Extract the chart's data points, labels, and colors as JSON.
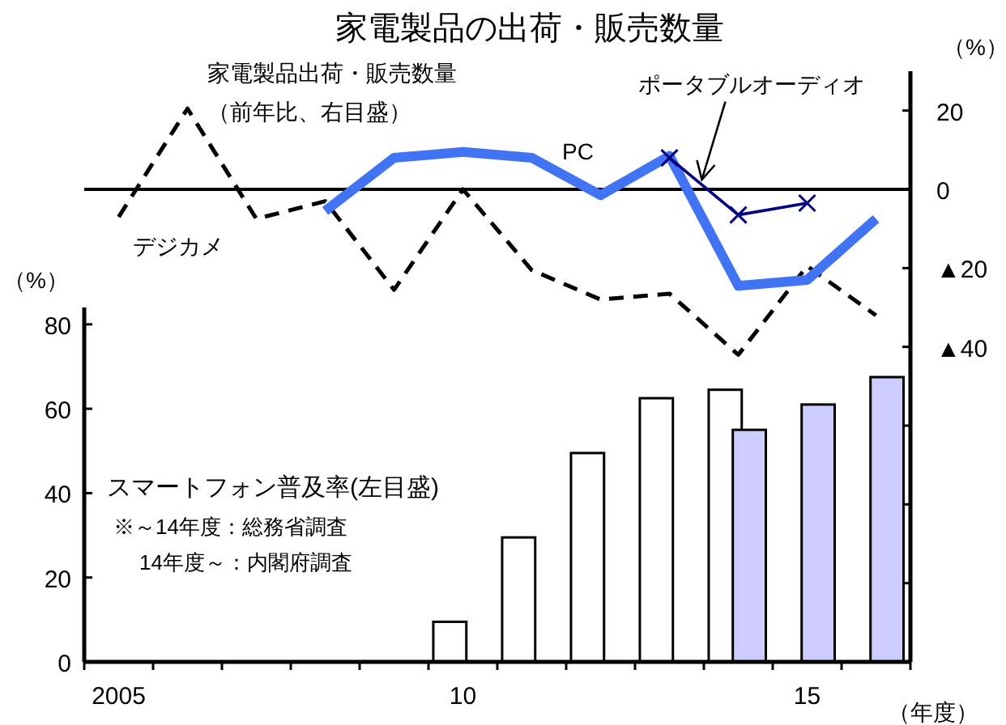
{
  "chart_data": [
    {
      "type": "line",
      "title": "家電製品の出荷・販売数量",
      "categories": [
        null,
        null,
        null,
        null,
        null,
        null,
        null,
        null,
        null,
        null,
        null,
        null
      ],
      "ylabel": "（%）",
      "ylim": [
        -120,
        30
      ],
      "yticks": [
        20,
        0,
        {
          "value": -20,
          "label": "▲20"
        },
        {
          "value": -40,
          "label": "▲40"
        },
        {
          "value": -60,
          "label": null
        },
        {
          "value": -80,
          "label": null
        },
        {
          "value": -100,
          "label": null
        }
      ],
      "tick_labels": "y",
      "series": [
        {
          "name": "デジカメ",
          "color": "#000000",
          "line_style": "dashed",
          "marker": "none",
          "values": [
            -7,
            20.5,
            -7.5,
            -3,
            -25.5,
            0,
            -20.5,
            -28,
            -26.5,
            -42,
            -19.5,
            -32
          ]
        },
        {
          "name": "PC",
          "color": "#4173f5",
          "line_style": "solid",
          "marker": "none",
          "values": [
            null,
            null,
            null,
            -5.5,
            8,
            9.5,
            8,
            -1.5,
            8.5,
            -24.5,
            -23,
            -7.5
          ]
        },
        {
          "name": "ポータブルオーディオ",
          "color": "#000080",
          "line_style": "solid",
          "marker": "cross",
          "values": [
            null,
            null,
            null,
            null,
            null,
            null,
            null,
            null,
            8,
            -6.5,
            -3.5,
            null
          ]
        }
      ],
      "ref_lines": [
        {
          "axis": "y",
          "value": 0,
          "color": "#000000"
        }
      ],
      "annotations": [
        "家電製品出荷・販売数量",
        "（前年比、右目盛）"
      ],
      "grid": false,
      "legend": false
    },
    {
      "type": "bar",
      "categories": [
        "2005",
        null,
        null,
        null,
        null,
        "10",
        null,
        null,
        null,
        null,
        "15",
        null
      ],
      "xlabel": "（年度）",
      "ylabel": "（%）",
      "ylim": [
        0,
        84
      ],
      "yticks": [
        0,
        20,
        40,
        60,
        80
      ],
      "series": [
        {
          "color": "#ffffff",
          "values": [
            null,
            null,
            null,
            null,
            null,
            9.5,
            29.5,
            49.5,
            62.5,
            64.5,
            null,
            null
          ]
        },
        {
          "color": "#ccccff",
          "values": [
            null,
            null,
            null,
            null,
            null,
            null,
            null,
            null,
            null,
            55,
            61,
            67.5
          ]
        }
      ],
      "annotations": [
        "スマートフォン普及率(左目盛)",
        "※～14年度：総務省調査",
        "14年度～：内閣府調査"
      ],
      "grid": false,
      "legend": false
    }
  ]
}
